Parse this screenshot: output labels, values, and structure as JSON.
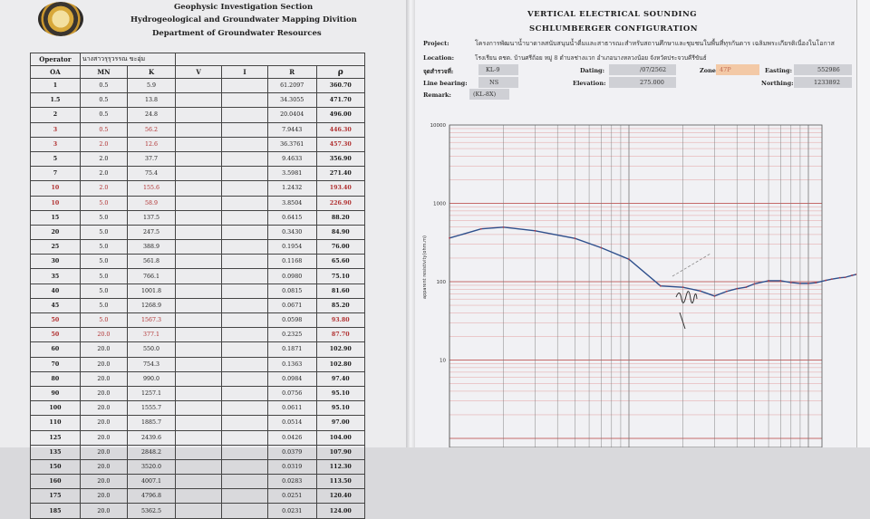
{
  "left": {
    "section": "Geophysic Investigation Section",
    "division": "Hydrogeological and Groundwater Mapping Divition",
    "department": "Department of Groundwater Resources",
    "operator_label": "Operator",
    "operator_value": "นางสาวรุรุวรรณ ขะอุ่ม",
    "columns": [
      "OA",
      "MN",
      "K",
      "V",
      "I",
      "R",
      "ρ"
    ],
    "rows": [
      {
        "oa": "1",
        "mn": "0.5",
        "k": "5.9",
        "r": "61.2097",
        "rho": "360.70",
        "red": false
      },
      {
        "oa": "1.5",
        "mn": "0.5",
        "k": "13.8",
        "r": "34.3055",
        "rho": "471.70",
        "red": false
      },
      {
        "oa": "2",
        "mn": "0.5",
        "k": "24.8",
        "r": "20.0404",
        "rho": "496.00",
        "red": false
      },
      {
        "oa": "3",
        "mn": "0.5",
        "k": "56.2",
        "r": "7.9443",
        "rho": "446.30",
        "red": true
      },
      {
        "oa": "3",
        "mn": "2.0",
        "k": "12.6",
        "r": "36.3761",
        "rho": "457.30",
        "red": true
      },
      {
        "oa": "5",
        "mn": "2.0",
        "k": "37.7",
        "r": "9.4633",
        "rho": "356.90",
        "red": false
      },
      {
        "oa": "7",
        "mn": "2.0",
        "k": "75.4",
        "r": "3.5981",
        "rho": "271.40",
        "red": false
      },
      {
        "oa": "10",
        "mn": "2.0",
        "k": "155.6",
        "r": "1.2432",
        "rho": "193.40",
        "red": true
      },
      {
        "oa": "10",
        "mn": "5.0",
        "k": "58.9",
        "r": "3.8504",
        "rho": "226.90",
        "red": true
      },
      {
        "oa": "15",
        "mn": "5.0",
        "k": "137.5",
        "r": "0.6415",
        "rho": "88.20",
        "red": false
      },
      {
        "oa": "20",
        "mn": "5.0",
        "k": "247.5",
        "r": "0.3430",
        "rho": "84.90",
        "red": false
      },
      {
        "oa": "25",
        "mn": "5.0",
        "k": "388.9",
        "r": "0.1954",
        "rho": "76.00",
        "red": false
      },
      {
        "oa": "30",
        "mn": "5.0",
        "k": "561.8",
        "r": "0.1168",
        "rho": "65.60",
        "red": false
      },
      {
        "oa": "35",
        "mn": "5.0",
        "k": "766.1",
        "r": "0.0980",
        "rho": "75.10",
        "red": false
      },
      {
        "oa": "40",
        "mn": "5.0",
        "k": "1001.8",
        "r": "0.0815",
        "rho": "81.60",
        "red": false
      },
      {
        "oa": "45",
        "mn": "5.0",
        "k": "1268.9",
        "r": "0.0671",
        "rho": "85.20",
        "red": false
      },
      {
        "oa": "50",
        "mn": "5.0",
        "k": "1567.3",
        "r": "0.0598",
        "rho": "93.80",
        "red": true
      },
      {
        "oa": "50",
        "mn": "20.0",
        "k": "377.1",
        "r": "0.2325",
        "rho": "87.70",
        "red": true
      },
      {
        "oa": "60",
        "mn": "20.0",
        "k": "550.0",
        "r": "0.1871",
        "rho": "102.90",
        "red": false
      },
      {
        "oa": "70",
        "mn": "20.0",
        "k": "754.3",
        "r": "0.1363",
        "rho": "102.80",
        "red": false
      },
      {
        "oa": "80",
        "mn": "20.0",
        "k": "990.0",
        "r": "0.0984",
        "rho": "97.40",
        "red": false
      },
      {
        "oa": "90",
        "mn": "20.0",
        "k": "1257.1",
        "r": "0.0756",
        "rho": "95.10",
        "red": false
      },
      {
        "oa": "100",
        "mn": "20.0",
        "k": "1555.7",
        "r": "0.0611",
        "rho": "95.10",
        "red": false
      },
      {
        "oa": "110",
        "mn": "20.0",
        "k": "1885.7",
        "r": "0.0514",
        "rho": "97.00",
        "red": false
      },
      {
        "oa": "125",
        "mn": "20.0",
        "k": "2439.6",
        "r": "0.0426",
        "rho": "104.00",
        "red": false
      },
      {
        "oa": "135",
        "mn": "20.0",
        "k": "2848.2",
        "r": "0.0379",
        "rho": "107.90",
        "red": false
      },
      {
        "oa": "150",
        "mn": "20.0",
        "k": "3520.0",
        "r": "0.0319",
        "rho": "112.30",
        "red": false
      },
      {
        "oa": "160",
        "mn": "20.0",
        "k": "4007.1",
        "r": "0.0283",
        "rho": "113.50",
        "red": false
      },
      {
        "oa": "175",
        "mn": "20.0",
        "k": "4796.8",
        "r": "0.0251",
        "rho": "120.40",
        "red": false
      },
      {
        "oa": "185",
        "mn": "20.0",
        "k": "5362.5",
        "r": "0.0231",
        "rho": "124.00",
        "red": false
      }
    ]
  },
  "right": {
    "title1": "VERTICAL ELECTRICAL SOUNDING",
    "title2": "SCHLUMBERGER CONFIGURATION",
    "project_label": "Project:",
    "project_value": "โครงการพัฒนาน้ำบาดาลสนับสนุนน้ำดื่มและสาธารณะสำหรับสถานศึกษาและชุมชนในพื้นที่ทุรกันดาร เฉลิมพระเกียรติเนื่องในโอกาส",
    "location_label": "Location:",
    "location_value": "โรงเรียน ตชด. บ้านศรีถ้อย หมู่ 8 ตำบลช่างแวก อำเภอนางหลวงน้อย จังหวัดประจวบคีรีขันธ์",
    "point_label": "จุดสำรวจที่:",
    "point_value": "KL-9",
    "dating_label": "Dating:",
    "dating_value": "/07/2562",
    "zone_label": "Zone:",
    "zone_value": "47P",
    "easting_label": "Easting:",
    "easting_value": "552986",
    "bearing_label": "Line bearing:",
    "bearing_value": "NS",
    "elevation_label": "Elevation:",
    "elevation_value": "275.000",
    "northing_label": "Northing:",
    "northing_value": "1233892",
    "remark_label": "Remark:",
    "remark_value": "(KL-8X)",
    "y_axis_label": "apparent resistivity(ohm.m)",
    "y_ticks": [
      "10000",
      "1000",
      "100",
      "10"
    ],
    "annotation": "4"
  },
  "chart_data": {
    "type": "line",
    "x_scale": "log",
    "y_scale": "log",
    "xlabel": "",
    "ylabel": "apparent resistivity(ohm.m)",
    "ylim": [
      1,
      10000
    ],
    "x": [
      1,
      1.5,
      2,
      3,
      5,
      7,
      10,
      15,
      20,
      25,
      30,
      35,
      40,
      45,
      50,
      60,
      70,
      80,
      90,
      100,
      110,
      125,
      135,
      150,
      160,
      175,
      185
    ],
    "series": [
      {
        "values": [
          360.7,
          471.7,
          496.0,
          446.3,
          356.9,
          271.4,
          193.4,
          88.2,
          84.9,
          76.0,
          65.6,
          75.1,
          81.6,
          85.2,
          93.8,
          102.9,
          102.8,
          97.4,
          95.1,
          95.1,
          97.0,
          104.0,
          107.9,
          112.3,
          113.5,
          120.4,
          124.0
        ],
        "color": "#2e4f8c"
      }
    ],
    "grid": true
  }
}
